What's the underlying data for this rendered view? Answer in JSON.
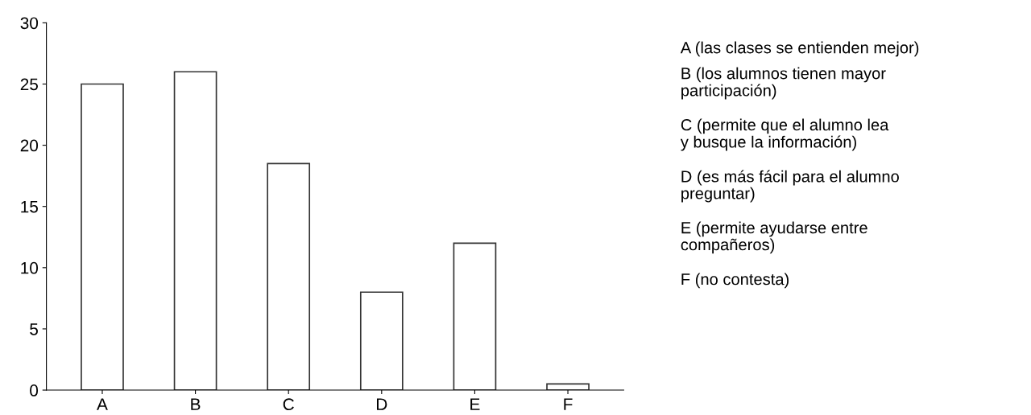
{
  "chart_data": {
    "type": "bar",
    "categories": [
      "A",
      "B",
      "C",
      "D",
      "E",
      "F"
    ],
    "values": [
      25,
      26,
      18.5,
      8,
      12,
      0.5
    ],
    "color": "#ffffff",
    "ylim": [
      0,
      30
    ],
    "yticks": [
      0,
      5,
      10,
      15,
      20,
      25,
      30
    ],
    "grid": false,
    "annotations": [
      "A (las clases se entienden mejor)",
      "B (los alumnos tienen mayor\nparticipación)",
      "C (permite que el alumno lea\ny busque la información)",
      "D (es más fácil para el alumno\npreguntar)",
      "E (permite ayudarse entre\ncompañeros)",
      "F (no contesta)"
    ]
  }
}
